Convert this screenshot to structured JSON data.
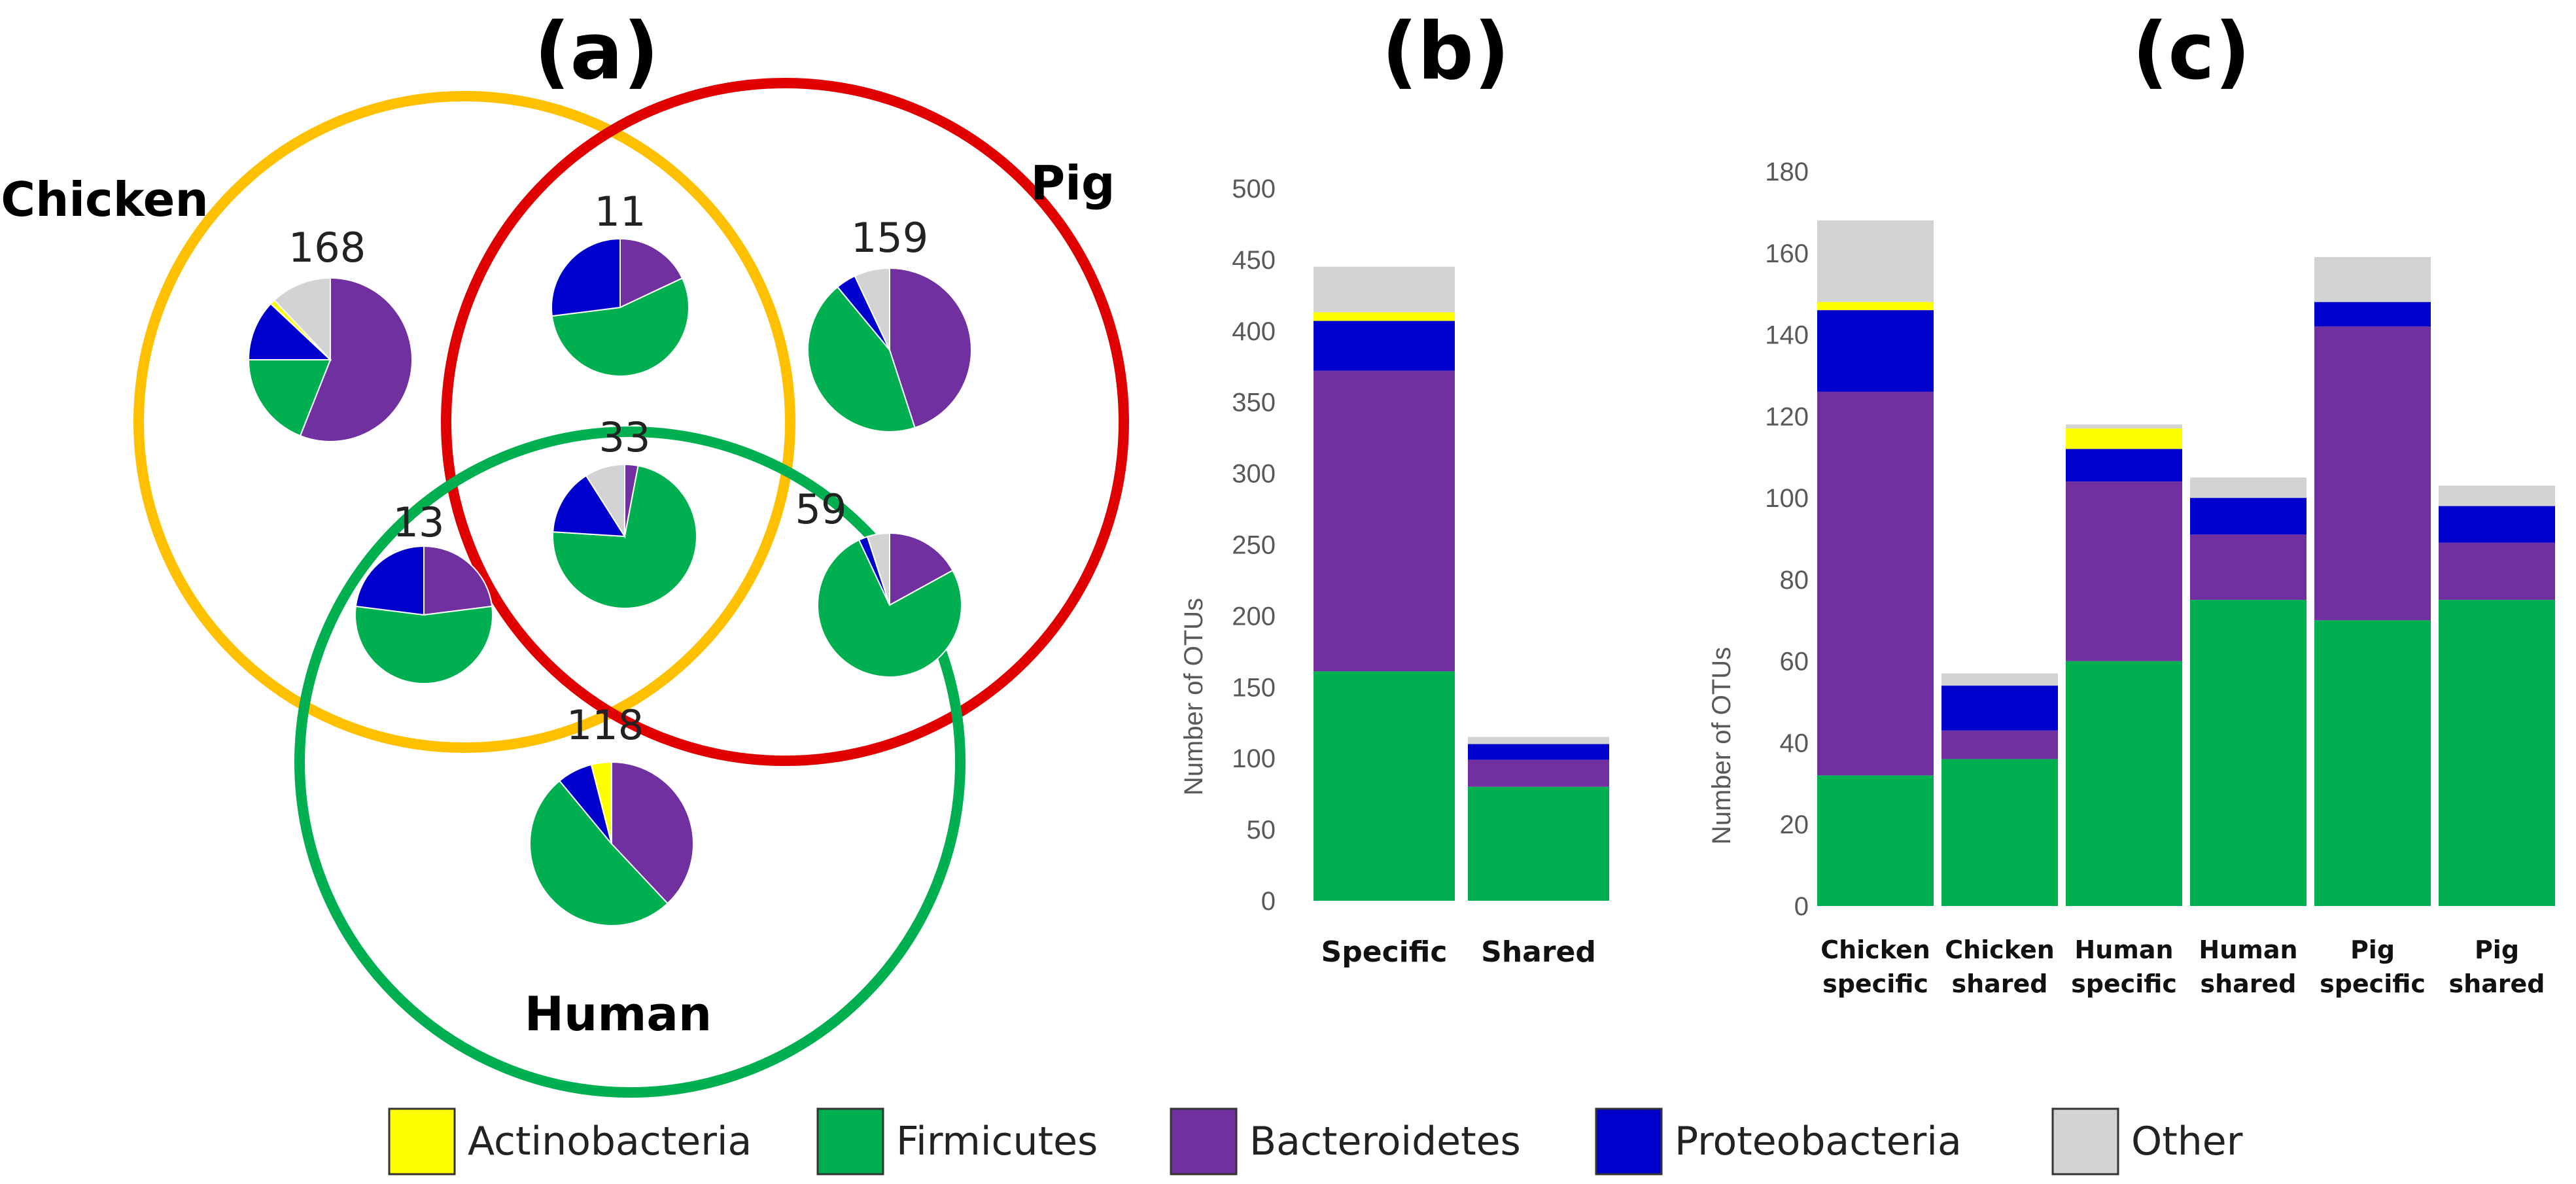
{
  "colors": {
    "Actinobacteria": "#FFFF00",
    "Firmicutes": "#00B050",
    "Bacteroidetes": "#7030A0",
    "Proteobacteria": "#0000CC",
    "Other": "#D3D3D3",
    "chicken_circle": "#FFC000",
    "pig_circle": "#E00000",
    "human_circle": "#00B050"
  },
  "legend": [
    "Actinobacteria",
    "Firmicutes",
    "Bacteroidetes",
    "Proteobacteria",
    "Other"
  ],
  "chart_data": [
    {
      "panel": "(a)",
      "type": "venn-pie",
      "title": "(a)",
      "sets": [
        "Chicken",
        "Pig",
        "Human"
      ],
      "regions": [
        {
          "id": "chicken-only",
          "label": "168",
          "fractions": {
            "Firmicutes": 0.19,
            "Bacteroidetes": 0.56,
            "Proteobacteria": 0.12,
            "Actinobacteria": 0.01,
            "Other": 0.12
          }
        },
        {
          "id": "chicken-pig",
          "label": "11",
          "fractions": {
            "Firmicutes": 0.55,
            "Bacteroidetes": 0.18,
            "Proteobacteria": 0.27,
            "Actinobacteria": 0,
            "Other": 0
          }
        },
        {
          "id": "pig-only",
          "label": "159",
          "fractions": {
            "Firmicutes": 0.44,
            "Bacteroidetes": 0.45,
            "Proteobacteria": 0.04,
            "Actinobacteria": 0,
            "Other": 0.07
          }
        },
        {
          "id": "all-three",
          "label": "33",
          "fractions": {
            "Firmicutes": 0.73,
            "Bacteroidetes": 0.03,
            "Proteobacteria": 0.15,
            "Actinobacteria": 0,
            "Other": 0.09
          }
        },
        {
          "id": "chicken-human",
          "label": "13",
          "fractions": {
            "Firmicutes": 0.54,
            "Bacteroidetes": 0.23,
            "Proteobacteria": 0.23,
            "Actinobacteria": 0,
            "Other": 0
          }
        },
        {
          "id": "pig-human",
          "label": "59",
          "fractions": {
            "Firmicutes": 0.76,
            "Bacteroidetes": 0.17,
            "Proteobacteria": 0.02,
            "Actinobacteria": 0,
            "Other": 0.05
          }
        },
        {
          "id": "human-only",
          "label": "118",
          "fractions": {
            "Firmicutes": 0.51,
            "Bacteroidetes": 0.38,
            "Proteobacteria": 0.07,
            "Actinobacteria": 0.04,
            "Other": 0
          }
        }
      ]
    },
    {
      "panel": "(b)",
      "type": "bar",
      "stacked": true,
      "title": "(b)",
      "categories": [
        "Specific",
        "Shared"
      ],
      "ylabel": "Number of OTUs",
      "ylim": [
        0,
        500
      ],
      "yticks": [
        0,
        50,
        100,
        150,
        200,
        250,
        300,
        350,
        400,
        450,
        500
      ],
      "series": [
        {
          "name": "Firmicutes",
          "values": [
            161,
            80
          ]
        },
        {
          "name": "Bacteroidetes",
          "values": [
            211,
            19
          ]
        },
        {
          "name": "Proteobacteria",
          "values": [
            35,
            11
          ]
        },
        {
          "name": "Actinobacteria",
          "values": [
            6,
            0
          ]
        },
        {
          "name": "Other",
          "values": [
            32,
            5
          ]
        }
      ]
    },
    {
      "panel": "(c)",
      "type": "bar",
      "stacked": true,
      "title": "(c)",
      "categories": [
        [
          "Chicken",
          "specific"
        ],
        [
          "Chicken",
          "shared"
        ],
        [
          "Human",
          "specific"
        ],
        [
          "Human",
          "shared"
        ],
        [
          "Pig",
          "specific"
        ],
        [
          "Pig",
          "shared"
        ]
      ],
      "ylabel": "Number of OTUs",
      "ylim": [
        0,
        180
      ],
      "yticks": [
        0,
        20,
        40,
        60,
        80,
        100,
        120,
        140,
        160,
        180
      ],
      "series": [
        {
          "name": "Firmicutes",
          "values": [
            32,
            36,
            60,
            75,
            70,
            75
          ]
        },
        {
          "name": "Bacteroidetes",
          "values": [
            94,
            7,
            44,
            16,
            72,
            14
          ]
        },
        {
          "name": "Proteobacteria",
          "values": [
            20,
            11,
            8,
            9,
            6,
            9
          ]
        },
        {
          "name": "Actinobacteria",
          "values": [
            2,
            0,
            5,
            0,
            0,
            0
          ]
        },
        {
          "name": "Other",
          "values": [
            20,
            3,
            1,
            5,
            11,
            5
          ]
        }
      ]
    }
  ]
}
